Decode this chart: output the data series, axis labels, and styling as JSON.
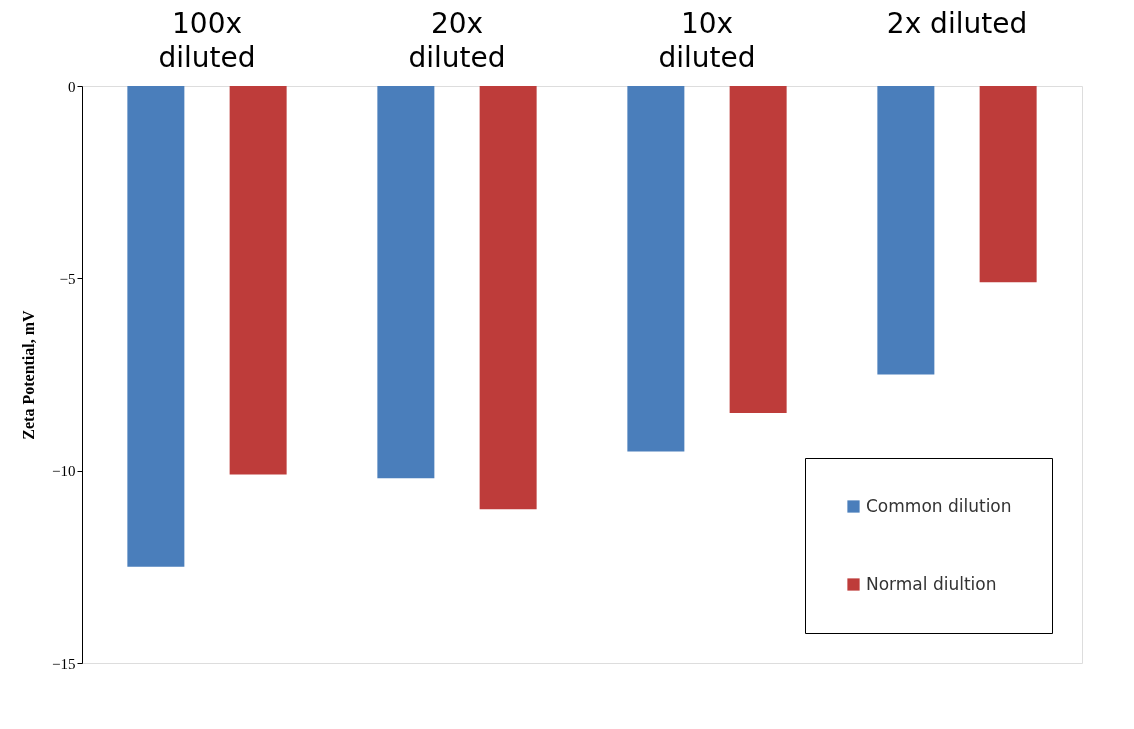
{
  "chart_data": {
    "type": "bar",
    "ylabel": "Zeta Potential, mV",
    "categories": [
      "100x diluted",
      "20x diluted",
      "10x diluted",
      "2x diluted"
    ],
    "series": [
      {
        "name": "Common dilution",
        "color": "#4a7ebb",
        "values": [
          -12.5,
          -10.2,
          -9.5,
          -7.5
        ]
      },
      {
        "name": "Normal diultion",
        "color": "#be3c3a",
        "values": [
          -10.1,
          -11.0,
          -8.5,
          -5.1
        ]
      }
    ],
    "ylim": [
      -15,
      0
    ],
    "yticks": [
      -15,
      -10,
      -5,
      0
    ],
    "grid": false,
    "legend": "bottom right"
  }
}
